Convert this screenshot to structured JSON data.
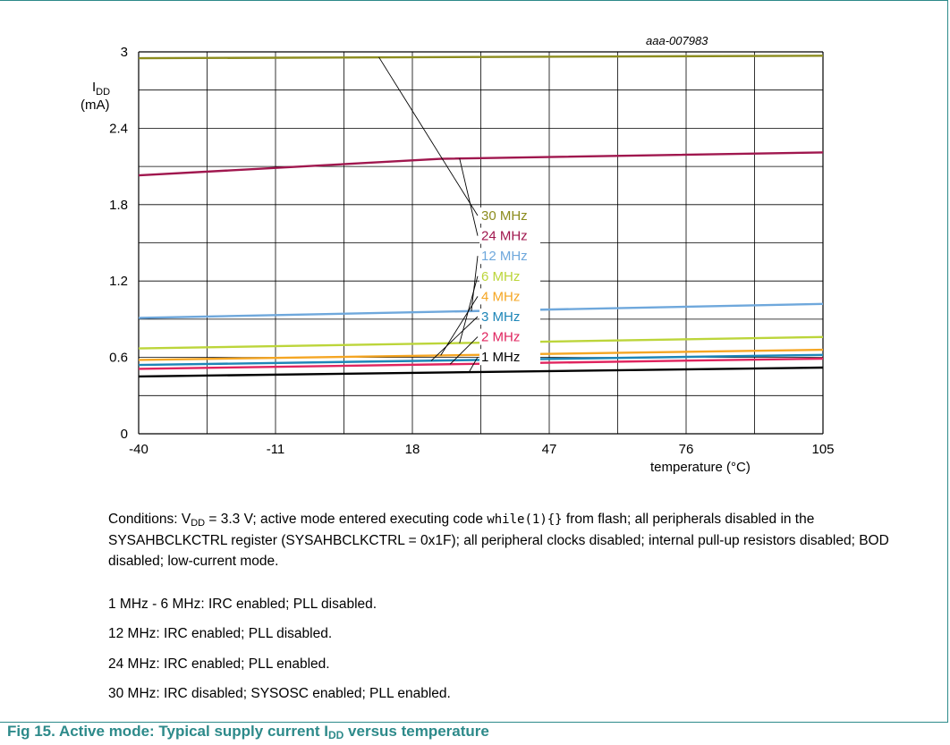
{
  "chart_data": {
    "type": "line",
    "id_label": "aaa-007983",
    "ylabel": "I",
    "ylabel_sub": "DD",
    "ylabel_unit": "(mA)",
    "xlabel": "temperature (°C)",
    "xlim": [
      -40,
      105
    ],
    "ylim": [
      0,
      3
    ],
    "xticks": [
      -40,
      -11,
      18,
      47,
      76,
      105
    ],
    "yticks": [
      0,
      0.6,
      1.2,
      1.8,
      2.4,
      3
    ],
    "ytick_labels": [
      "0",
      "0.6",
      "1.2",
      "1.8",
      "2.4",
      "3"
    ],
    "grid": true,
    "series": [
      {
        "name": "30 MHz",
        "color": "#8c8c1e",
        "x": [
          -40,
          105
        ],
        "y": [
          2.95,
          2.97
        ]
      },
      {
        "name": "24 MHz",
        "color": "#a0174e",
        "x": [
          -40,
          24,
          105
        ],
        "y": [
          2.03,
          2.16,
          2.21
        ]
      },
      {
        "name": "12 MHz",
        "color": "#6fa8dc",
        "x": [
          -40,
          105
        ],
        "y": [
          0.91,
          1.02
        ]
      },
      {
        "name": "6 MHz",
        "color": "#bcd53a",
        "x": [
          -40,
          105
        ],
        "y": [
          0.67,
          0.76
        ]
      },
      {
        "name": "4 MHz",
        "color": "#f5a623",
        "x": [
          -40,
          105
        ],
        "y": [
          0.58,
          0.66
        ]
      },
      {
        "name": "3 MHz",
        "color": "#1e86b8",
        "x": [
          -40,
          105
        ],
        "y": [
          0.54,
          0.62
        ]
      },
      {
        "name": "2 MHz",
        "color": "#e0245e",
        "x": [
          -40,
          105
        ],
        "y": [
          0.51,
          0.59
        ]
      },
      {
        "name": "1 MHz",
        "color": "#000000",
        "x": [
          -40,
          105
        ],
        "y": [
          0.45,
          0.52
        ]
      }
    ]
  },
  "conditions": {
    "p1_a": "Conditions: V",
    "p1_sub": "DD",
    "p1_b": " = 3.3 V; active mode entered executing code ",
    "p1_code": "while(1){}",
    "p1_c": " from flash; all peripherals disabled in the SYSAHBCLKCTRL register (SYSAHBCLKCTRL = 0x1F); all peripheral clocks disabled; internal pull-up resistors disabled; BOD disabled; low-current mode.",
    "p2": "1 MHz - 6 MHz: IRC enabled; PLL disabled.",
    "p3": "12 MHz: IRC enabled; PLL disabled.",
    "p4": "24 MHz: IRC enabled; PLL enabled.",
    "p5": "30 MHz: IRC disabled; SYSOSC enabled; PLL enabled."
  },
  "caption": {
    "text": "Fig 15.   Active mode: Typical supply current I",
    "sub": "DD",
    "tail": " versus temperature"
  },
  "colors": {
    "accent": "#2d8a8a"
  }
}
